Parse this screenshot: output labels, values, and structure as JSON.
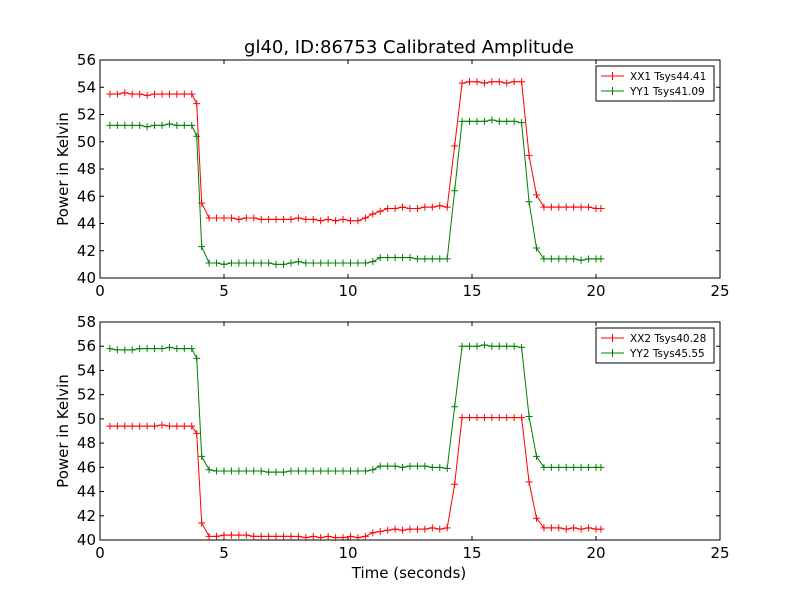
{
  "figure": {
    "title": "gl40, ID:86753 Calibrated Amplitude",
    "xlabel": "Time (seconds)"
  },
  "chart_data": [
    {
      "type": "line",
      "title": "gl40, ID:86753 Calibrated Amplitude",
      "xlabel": "",
      "ylabel": "Power in Kelvin",
      "xlim": [
        0,
        25
      ],
      "ylim": [
        40,
        56
      ],
      "xticks": [
        "0",
        "5",
        "10",
        "15",
        "20",
        "25"
      ],
      "yticks": [
        "40",
        "42",
        "44",
        "46",
        "48",
        "50",
        "52",
        "54",
        "56"
      ],
      "grid": false,
      "legend_position": "top-right",
      "x": [
        0.4,
        0.7,
        1.0,
        1.3,
        1.6,
        1.9,
        2.2,
        2.5,
        2.8,
        3.1,
        3.4,
        3.7,
        3.9,
        4.1,
        4.4,
        4.7,
        5.0,
        5.3,
        5.6,
        5.9,
        6.2,
        6.5,
        6.8,
        7.1,
        7.4,
        7.7,
        8.0,
        8.3,
        8.6,
        8.9,
        9.2,
        9.5,
        9.8,
        10.1,
        10.4,
        10.7,
        11.0,
        11.3,
        11.6,
        11.9,
        12.2,
        12.5,
        12.8,
        13.1,
        13.4,
        13.7,
        14.0,
        14.3,
        14.6,
        14.9,
        15.2,
        15.5,
        15.8,
        16.1,
        16.4,
        16.7,
        17.0,
        17.3,
        17.6,
        17.9,
        18.2,
        18.5,
        18.8,
        19.1,
        19.4,
        19.7,
        20.0,
        20.2
      ],
      "series": [
        {
          "name": "XX1 Tsys44.41",
          "color": "#ff0000",
          "values": [
            53.5,
            53.5,
            53.6,
            53.5,
            53.5,
            53.4,
            53.5,
            53.5,
            53.5,
            53.5,
            53.5,
            53.5,
            52.8,
            45.5,
            44.4,
            44.4,
            44.4,
            44.4,
            44.3,
            44.4,
            44.4,
            44.3,
            44.3,
            44.3,
            44.3,
            44.3,
            44.4,
            44.3,
            44.3,
            44.2,
            44.3,
            44.2,
            44.3,
            44.2,
            44.2,
            44.4,
            44.7,
            44.9,
            45.1,
            45.1,
            45.2,
            45.1,
            45.1,
            45.2,
            45.2,
            45.3,
            45.2,
            49.7,
            54.3,
            54.4,
            54.4,
            54.3,
            54.4,
            54.4,
            54.3,
            54.4,
            54.4,
            49.0,
            46.1,
            45.2,
            45.2,
            45.2,
            45.2,
            45.2,
            45.2,
            45.2,
            45.1,
            45.1
          ]
        },
        {
          "name": "YY1 Tsys41.09",
          "color": "#008000",
          "values": [
            51.2,
            51.2,
            51.2,
            51.2,
            51.2,
            51.1,
            51.2,
            51.2,
            51.3,
            51.2,
            51.2,
            51.2,
            50.4,
            42.3,
            41.1,
            41.1,
            41.0,
            41.1,
            41.1,
            41.1,
            41.1,
            41.1,
            41.1,
            41.0,
            41.0,
            41.1,
            41.2,
            41.1,
            41.1,
            41.1,
            41.1,
            41.1,
            41.1,
            41.1,
            41.1,
            41.1,
            41.2,
            41.5,
            41.5,
            41.5,
            41.5,
            41.5,
            41.4,
            41.4,
            41.4,
            41.4,
            41.4,
            46.4,
            51.5,
            51.5,
            51.5,
            51.5,
            51.6,
            51.5,
            51.5,
            51.5,
            51.4,
            45.6,
            42.2,
            41.4,
            41.4,
            41.4,
            41.4,
            41.4,
            41.3,
            41.4,
            41.4,
            41.4
          ]
        }
      ]
    },
    {
      "type": "line",
      "title": "",
      "xlabel": "Time (seconds)",
      "ylabel": "Power in Kelvin",
      "xlim": [
        0,
        25
      ],
      "ylim": [
        40,
        58
      ],
      "xticks": [
        "0",
        "5",
        "10",
        "15",
        "20",
        "25"
      ],
      "yticks": [
        "40",
        "42",
        "44",
        "46",
        "48",
        "50",
        "52",
        "54",
        "56",
        "58"
      ],
      "grid": false,
      "legend_position": "top-right",
      "x": [
        0.4,
        0.7,
        1.0,
        1.3,
        1.6,
        1.9,
        2.2,
        2.5,
        2.8,
        3.1,
        3.4,
        3.7,
        3.9,
        4.1,
        4.4,
        4.7,
        5.0,
        5.3,
        5.6,
        5.9,
        6.2,
        6.5,
        6.8,
        7.1,
        7.4,
        7.7,
        8.0,
        8.3,
        8.6,
        8.9,
        9.2,
        9.5,
        9.8,
        10.1,
        10.4,
        10.7,
        11.0,
        11.3,
        11.6,
        11.9,
        12.2,
        12.5,
        12.8,
        13.1,
        13.4,
        13.7,
        14.0,
        14.3,
        14.6,
        14.9,
        15.2,
        15.5,
        15.8,
        16.1,
        16.4,
        16.7,
        17.0,
        17.3,
        17.6,
        17.9,
        18.2,
        18.5,
        18.8,
        19.1,
        19.4,
        19.7,
        20.0,
        20.2
      ],
      "series": [
        {
          "name": "XX2 Tsys40.28",
          "color": "#ff0000",
          "values": [
            49.4,
            49.4,
            49.4,
            49.4,
            49.4,
            49.4,
            49.4,
            49.5,
            49.4,
            49.4,
            49.4,
            49.4,
            48.8,
            41.4,
            40.3,
            40.3,
            40.4,
            40.4,
            40.4,
            40.4,
            40.3,
            40.3,
            40.3,
            40.3,
            40.3,
            40.3,
            40.3,
            40.2,
            40.3,
            40.2,
            40.3,
            40.2,
            40.2,
            40.3,
            40.2,
            40.3,
            40.6,
            40.7,
            40.8,
            40.9,
            40.8,
            40.9,
            40.9,
            40.9,
            41.0,
            40.9,
            41.0,
            44.6,
            50.1,
            50.1,
            50.1,
            50.1,
            50.1,
            50.1,
            50.1,
            50.1,
            50.1,
            44.8,
            41.8,
            41.0,
            41.0,
            41.0,
            40.9,
            41.0,
            40.9,
            41.0,
            40.9,
            40.9
          ]
        },
        {
          "name": "YY2 Tsys45.55",
          "color": "#008000",
          "values": [
            55.8,
            55.7,
            55.7,
            55.7,
            55.8,
            55.8,
            55.8,
            55.8,
            55.9,
            55.8,
            55.8,
            55.8,
            55.0,
            46.9,
            45.8,
            45.7,
            45.7,
            45.7,
            45.7,
            45.7,
            45.7,
            45.7,
            45.6,
            45.6,
            45.6,
            45.7,
            45.7,
            45.7,
            45.7,
            45.7,
            45.7,
            45.7,
            45.7,
            45.7,
            45.7,
            45.7,
            45.8,
            46.1,
            46.1,
            46.1,
            46.0,
            46.1,
            46.1,
            46.1,
            46.0,
            46.0,
            45.9,
            51.0,
            56.0,
            56.0,
            56.0,
            56.1,
            56.0,
            56.0,
            56.0,
            56.0,
            55.9,
            50.2,
            46.9,
            46.0,
            46.0,
            46.0,
            46.0,
            46.0,
            46.0,
            46.0,
            46.0,
            46.0
          ]
        }
      ]
    }
  ]
}
